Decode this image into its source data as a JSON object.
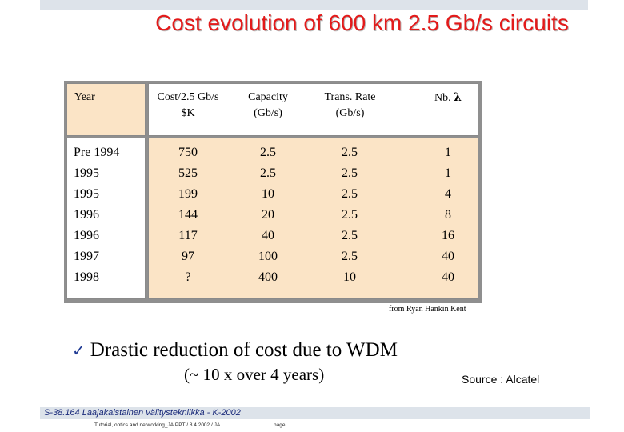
{
  "title": "Cost evolution of 600 km 2.5 Gb/s circuits",
  "table": {
    "headers": {
      "year": "Year",
      "cost_line1": "Cost/2.5 Gb/s",
      "cost_line2": "$K",
      "capacity_line1": "Capacity",
      "capacity_line2": "(Gb/s)",
      "rate_line1": "Trans. Rate",
      "rate_line2": "(Gb/s)",
      "nb": "Nb.",
      "lambda": "λ"
    },
    "rows": [
      {
        "year": "Pre 1994",
        "cost": "750",
        "capacity": "2.5",
        "rate": "2.5",
        "nb": "1"
      },
      {
        "year": "1995",
        "cost": "525",
        "capacity": "2.5",
        "rate": "2.5",
        "nb": "1"
      },
      {
        "year": "1995",
        "cost": "199",
        "capacity": "10",
        "rate": "2.5",
        "nb": "4"
      },
      {
        "year": "1996",
        "cost": "144",
        "capacity": "20",
        "rate": "2.5",
        "nb": "8"
      },
      {
        "year": "1996",
        "cost": "117",
        "capacity": "40",
        "rate": "2.5",
        "nb": "16"
      },
      {
        "year": "1997",
        "cost": "97",
        "capacity": "100",
        "rate": "2.5",
        "nb": "40"
      },
      {
        "year": "1998",
        "cost": "?",
        "capacity": "400",
        "rate": "10",
        "nb": "40"
      }
    ]
  },
  "credit": "from Ryan Hankin Kent",
  "bullet": {
    "icon": "check-mark-icon",
    "glyph": "✓",
    "text": "Drastic reduction of cost due to WDM"
  },
  "subtext": "(~ 10 x over 4 years)",
  "source": "Source : Alcatel",
  "footer": {
    "course": "S-38.164 Laajakaistainen välitystekniikka - K-2002",
    "info": "Tutorial, optics and networking_JA.PPT / 8.4.2002 / JA",
    "page": "page:"
  },
  "colors": {
    "title": "#e31a1a",
    "table_fill": "#fbe4c6",
    "bar": "#dde3ea",
    "footer_text": "#1a2a7a"
  }
}
